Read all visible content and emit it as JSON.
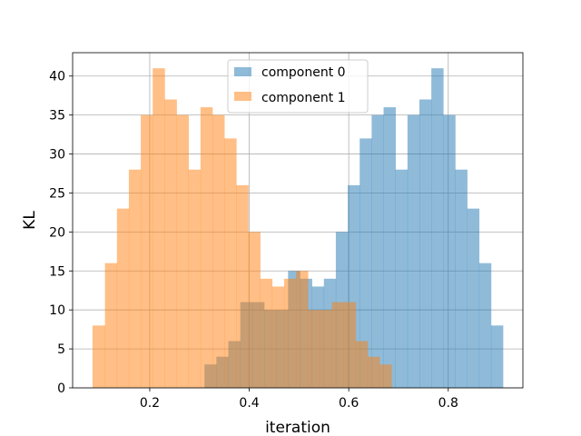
{
  "chart_data": {
    "type": "bar",
    "title": "",
    "xlabel": "iteration",
    "ylabel": "KL",
    "xlim": [
      0.045,
      0.95
    ],
    "ylim": [
      0,
      43
    ],
    "grid": true,
    "legend_position": "top-center",
    "x_ticks": [
      0.2,
      0.4,
      0.6,
      0.8
    ],
    "x_tick_labels": [
      "0.2",
      "0.4",
      "0.6",
      "0.8"
    ],
    "y_ticks": [
      0,
      5,
      10,
      15,
      20,
      25,
      30,
      35,
      40
    ],
    "y_tick_labels": [
      "0",
      "5",
      "10",
      "15",
      "20",
      "25",
      "30",
      "35",
      "40"
    ],
    "series": [
      {
        "name": "component 0",
        "color": "#1f77b4",
        "alpha": 0.5,
        "bins": [
          {
            "x0": 0.31,
            "x1": 0.334,
            "value": 3
          },
          {
            "x0": 0.334,
            "x1": 0.358,
            "value": 4
          },
          {
            "x0": 0.358,
            "x1": 0.382,
            "value": 6
          },
          {
            "x0": 0.382,
            "x1": 0.406,
            "value": 11
          },
          {
            "x0": 0.406,
            "x1": 0.43,
            "value": 11
          },
          {
            "x0": 0.43,
            "x1": 0.454,
            "value": 10
          },
          {
            "x0": 0.454,
            "x1": 0.478,
            "value": 10
          },
          {
            "x0": 0.478,
            "x1": 0.502,
            "value": 15
          },
          {
            "x0": 0.502,
            "x1": 0.526,
            "value": 14
          },
          {
            "x0": 0.526,
            "x1": 0.55,
            "value": 13
          },
          {
            "x0": 0.55,
            "x1": 0.574,
            "value": 14
          },
          {
            "x0": 0.574,
            "x1": 0.598,
            "value": 20
          },
          {
            "x0": 0.598,
            "x1": 0.622,
            "value": 26
          },
          {
            "x0": 0.622,
            "x1": 0.646,
            "value": 32
          },
          {
            "x0": 0.646,
            "x1": 0.67,
            "value": 35
          },
          {
            "x0": 0.67,
            "x1": 0.694,
            "value": 36
          },
          {
            "x0": 0.694,
            "x1": 0.718,
            "value": 28
          },
          {
            "x0": 0.718,
            "x1": 0.742,
            "value": 35
          },
          {
            "x0": 0.742,
            "x1": 0.766,
            "value": 37
          },
          {
            "x0": 0.766,
            "x1": 0.79,
            "value": 41
          },
          {
            "x0": 0.79,
            "x1": 0.814,
            "value": 35
          },
          {
            "x0": 0.814,
            "x1": 0.838,
            "value": 28
          },
          {
            "x0": 0.838,
            "x1": 0.862,
            "value": 23
          },
          {
            "x0": 0.862,
            "x1": 0.886,
            "value": 16
          },
          {
            "x0": 0.886,
            "x1": 0.91,
            "value": 8
          }
        ]
      },
      {
        "name": "component 1",
        "color": "#ff7f0e",
        "alpha": 0.5,
        "bins": [
          {
            "x0": 0.085,
            "x1": 0.11,
            "value": 8
          },
          {
            "x0": 0.11,
            "x1": 0.134,
            "value": 16
          },
          {
            "x0": 0.134,
            "x1": 0.158,
            "value": 23
          },
          {
            "x0": 0.158,
            "x1": 0.182,
            "value": 28
          },
          {
            "x0": 0.182,
            "x1": 0.206,
            "value": 35
          },
          {
            "x0": 0.206,
            "x1": 0.23,
            "value": 41
          },
          {
            "x0": 0.23,
            "x1": 0.254,
            "value": 37
          },
          {
            "x0": 0.254,
            "x1": 0.278,
            "value": 35
          },
          {
            "x0": 0.278,
            "x1": 0.302,
            "value": 28
          },
          {
            "x0": 0.302,
            "x1": 0.326,
            "value": 36
          },
          {
            "x0": 0.326,
            "x1": 0.35,
            "value": 35
          },
          {
            "x0": 0.35,
            "x1": 0.374,
            "value": 32
          },
          {
            "x0": 0.374,
            "x1": 0.398,
            "value": 26
          },
          {
            "x0": 0.398,
            "x1": 0.422,
            "value": 20
          },
          {
            "x0": 0.422,
            "x1": 0.446,
            "value": 14
          },
          {
            "x0": 0.446,
            "x1": 0.47,
            "value": 13
          },
          {
            "x0": 0.47,
            "x1": 0.494,
            "value": 14
          },
          {
            "x0": 0.494,
            "x1": 0.518,
            "value": 15
          },
          {
            "x0": 0.518,
            "x1": 0.542,
            "value": 10
          },
          {
            "x0": 0.542,
            "x1": 0.566,
            "value": 10
          },
          {
            "x0": 0.566,
            "x1": 0.59,
            "value": 11
          },
          {
            "x0": 0.59,
            "x1": 0.614,
            "value": 11
          },
          {
            "x0": 0.614,
            "x1": 0.638,
            "value": 6
          },
          {
            "x0": 0.638,
            "x1": 0.662,
            "value": 4
          },
          {
            "x0": 0.662,
            "x1": 0.686,
            "value": 3
          }
        ]
      }
    ]
  }
}
